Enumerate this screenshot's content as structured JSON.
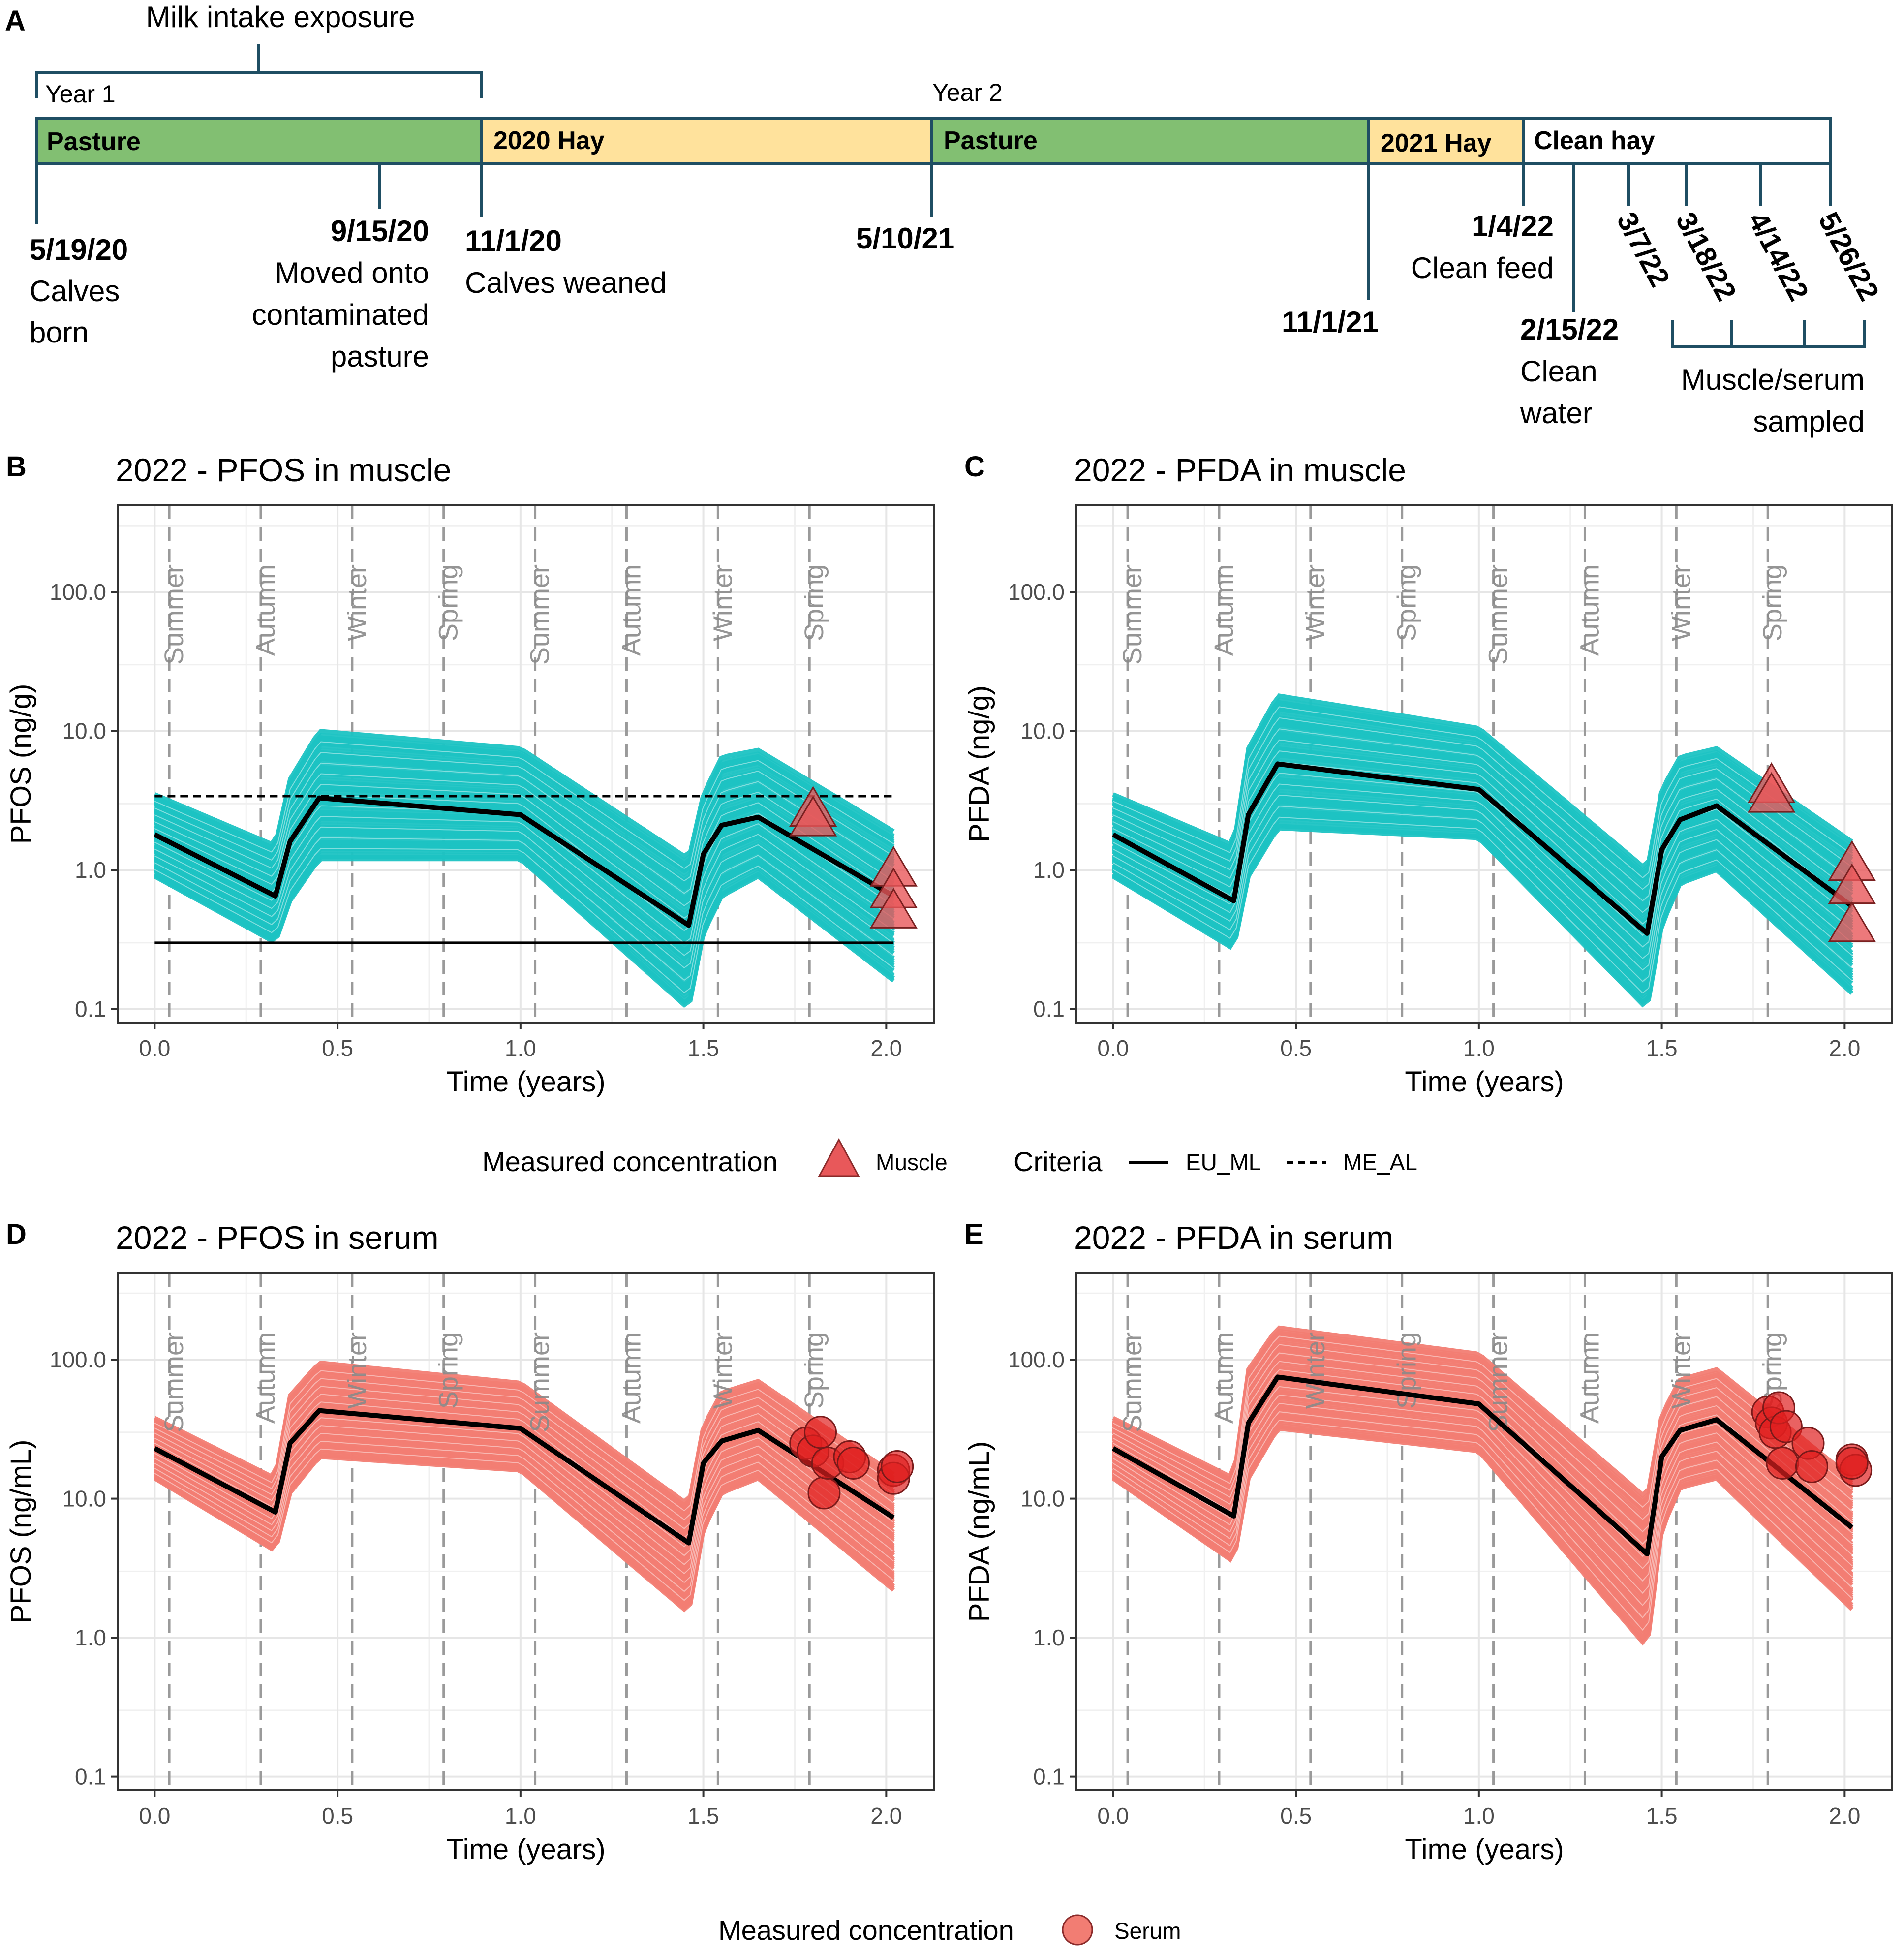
{
  "timeline": {
    "panel_letter": "A",
    "milk_label": "Milk intake exposure",
    "year1_label": "Year 1",
    "year2_label": "Year 2",
    "phases": [
      {
        "label": "Pasture",
        "color": "#82bf72"
      },
      {
        "label": "2020 Hay",
        "color": "#ffe29c"
      },
      {
        "label": "Pasture",
        "color": "#82bf72"
      },
      {
        "label": "2021 Hay",
        "color": "#ffe29c"
      },
      {
        "label": "Clean hay",
        "color": "#ffffff"
      }
    ],
    "events": [
      {
        "date": "5/19/20",
        "desc": [
          "Calves",
          "born"
        ]
      },
      {
        "date": "9/15/20",
        "desc": [
          "Moved onto",
          "contaminated",
          "pasture"
        ]
      },
      {
        "date": "11/1/20",
        "desc": [
          "Calves weaned"
        ]
      },
      {
        "date": "5/10/21",
        "desc": []
      },
      {
        "date": "11/1/21",
        "desc": []
      },
      {
        "date": "1/4/22",
        "desc": [
          "Clean feed"
        ]
      },
      {
        "date": "2/15/22",
        "desc": [
          "Clean",
          "water"
        ]
      }
    ],
    "sampling_dates": [
      "3/7/22",
      "3/18/22",
      "4/14/22",
      "5/26/22"
    ],
    "sampling_label": [
      "Muscle/serum",
      "sampled"
    ]
  },
  "legend_muscle": {
    "title": "Measured concentration",
    "item": "Muscle",
    "criteria_title": "Criteria",
    "criteria_items": [
      "EU_ML",
      "ME_AL"
    ]
  },
  "legend_serum": {
    "title": "Measured concentration",
    "item": "Serum"
  },
  "colors": {
    "teal": "#1cc3c3",
    "salmon": "#f27d73",
    "triangle": "#e8585a",
    "circle": "#e02020",
    "median": "#000000",
    "timeline_border": "#1f4e63"
  },
  "chart_data": [
    {
      "panel": "B",
      "type": "line",
      "title": "2022 - PFOS in muscle",
      "xlabel": "Time (years)",
      "ylabel": "PFOS (ng/g)",
      "xlim": [
        -0.1,
        2.13
      ],
      "ylim": [
        0.08,
        420
      ],
      "yscale": "log",
      "xticks": [
        "0.0",
        "0.5",
        "1.0",
        "1.5",
        "2.0"
      ],
      "yticks": [
        "0.1",
        "1.0",
        "10.0",
        "100.0"
      ],
      "seasons": [
        {
          "label": "Summer",
          "x": 0.04
        },
        {
          "label": "Autumn",
          "x": 0.29
        },
        {
          "label": "Winter",
          "x": 0.54
        },
        {
          "label": "Spring",
          "x": 0.79
        },
        {
          "label": "Summer",
          "x": 1.04
        },
        {
          "label": "Autumn",
          "x": 1.29
        },
        {
          "label": "Winter",
          "x": 1.54
        },
        {
          "label": "Spring",
          "x": 1.79
        }
      ],
      "band": "teal",
      "median": {
        "x": [
          0,
          0.33,
          0.37,
          0.45,
          1.0,
          1.46,
          1.5,
          1.55,
          1.65,
          2.02
        ],
        "y": [
          1.8,
          0.65,
          1.6,
          3.3,
          2.5,
          0.4,
          1.3,
          2.1,
          2.4,
          0.65
        ]
      },
      "band_lower": {
        "x": [
          0,
          0.33,
          0.37,
          0.45,
          1.0,
          1.46,
          1.5,
          1.55,
          1.65,
          2.02
        ],
        "y": [
          0.9,
          0.3,
          0.6,
          1.2,
          1.2,
          0.1,
          0.35,
          0.65,
          0.9,
          0.16
        ]
      },
      "band_upper": {
        "x": [
          0,
          0.33,
          0.37,
          0.45,
          1.0,
          1.46,
          1.5,
          1.55,
          1.65,
          2.02
        ],
        "y": [
          3.5,
          1.5,
          4.5,
          10.0,
          7.5,
          1.2,
          3.5,
          6.5,
          7.3,
          1.9
        ]
      },
      "hlines": [
        {
          "name": "EU_ML",
          "y": 0.3,
          "style": "solid"
        },
        {
          "name": "ME_AL",
          "y": 3.4,
          "style": "dashed"
        }
      ],
      "hline_x": [
        0,
        2.02
      ],
      "points": {
        "shape": "triangle",
        "name": "Muscle",
        "x": [
          1.8,
          1.8,
          2.02,
          2.02,
          2.02
        ],
        "y": [
          2.7,
          2.3,
          1.0,
          0.7,
          0.5
        ]
      }
    },
    {
      "panel": "C",
      "type": "line",
      "title": "2022 - PFDA in muscle",
      "xlabel": "Time (years)",
      "ylabel": "PFDA (ng/g)",
      "xlim": [
        -0.1,
        2.13
      ],
      "ylim": [
        0.08,
        420
      ],
      "yscale": "log",
      "xticks": [
        "0.0",
        "0.5",
        "1.0",
        "1.5",
        "2.0"
      ],
      "yticks": [
        "0.1",
        "1.0",
        "10.0",
        "100.0"
      ],
      "seasons": [
        {
          "label": "Summer",
          "x": 0.04
        },
        {
          "label": "Autumn",
          "x": 0.29
        },
        {
          "label": "Winter",
          "x": 0.54
        },
        {
          "label": "Spring",
          "x": 0.79
        },
        {
          "label": "Summer",
          "x": 1.04
        },
        {
          "label": "Autumn",
          "x": 1.29
        },
        {
          "label": "Winter",
          "x": 1.54
        },
        {
          "label": "Spring",
          "x": 1.79
        }
      ],
      "band": "teal",
      "median": {
        "x": [
          0,
          0.33,
          0.37,
          0.45,
          1.0,
          1.46,
          1.5,
          1.55,
          1.65,
          2.02
        ],
        "y": [
          1.8,
          0.6,
          2.5,
          5.8,
          3.8,
          0.35,
          1.4,
          2.3,
          2.9,
          0.55
        ]
      },
      "band_lower": {
        "x": [
          0,
          0.33,
          0.37,
          0.45,
          1.0,
          1.46,
          1.5,
          1.55,
          1.65,
          2.02
        ],
        "y": [
          0.9,
          0.27,
          0.9,
          2.0,
          1.7,
          0.1,
          0.4,
          0.8,
          1.0,
          0.13
        ]
      },
      "band_upper": {
        "x": [
          0,
          0.33,
          0.37,
          0.45,
          1.0,
          1.46,
          1.5,
          1.55,
          1.65,
          2.02
        ],
        "y": [
          3.5,
          1.5,
          7.5,
          18.0,
          10.5,
          1.0,
          3.8,
          6.5,
          7.5,
          1.6
        ]
      },
      "hlines": [],
      "hline_x": [
        0,
        2.02
      ],
      "points": {
        "shape": "triangle",
        "name": "Muscle",
        "x": [
          1.8,
          1.8,
          2.02,
          2.02,
          2.02
        ],
        "y": [
          4.0,
          3.4,
          1.1,
          0.75,
          0.4
        ]
      }
    },
    {
      "panel": "D",
      "type": "line",
      "title": "2022 - PFOS in serum",
      "xlabel": "Time (years)",
      "ylabel": "PFOS (ng/mL)",
      "xlim": [
        -0.1,
        2.13
      ],
      "ylim": [
        0.08,
        420
      ],
      "yscale": "log",
      "xticks": [
        "0.0",
        "0.5",
        "1.0",
        "1.5",
        "2.0"
      ],
      "yticks": [
        "0.1",
        "1.0",
        "10.0",
        "100.0"
      ],
      "seasons": [
        {
          "label": "Summer",
          "x": 0.04
        },
        {
          "label": "Autumn",
          "x": 0.29
        },
        {
          "label": "Winter",
          "x": 0.54
        },
        {
          "label": "Spring",
          "x": 0.79
        },
        {
          "label": "Summer",
          "x": 1.04
        },
        {
          "label": "Autumn",
          "x": 1.29
        },
        {
          "label": "Winter",
          "x": 1.54
        },
        {
          "label": "Spring",
          "x": 1.79
        }
      ],
      "band": "salmon",
      "median": {
        "x": [
          0,
          0.33,
          0.37,
          0.45,
          1.0,
          1.46,
          1.5,
          1.55,
          1.65,
          2.02
        ],
        "y": [
          23,
          8,
          25,
          43,
          32,
          4.8,
          18,
          26,
          31,
          7.3
        ]
      },
      "band_lower": {
        "x": [
          0,
          0.33,
          0.37,
          0.45,
          1.0,
          1.46,
          1.5,
          1.55,
          1.65,
          2.02
        ],
        "y": [
          14,
          4.2,
          11,
          20,
          16,
          1.5,
          6,
          11,
          14,
          2.2
        ]
      },
      "band_upper": {
        "x": [
          0,
          0.33,
          0.37,
          0.45,
          1.0,
          1.46,
          1.5,
          1.55,
          1.65,
          2.02
        ],
        "y": [
          38,
          14,
          55,
          95,
          68,
          9,
          33,
          58,
          70,
          15
        ]
      },
      "hlines": [],
      "hline_x": [
        0,
        2.02
      ],
      "points": {
        "shape": "circle",
        "name": "Serum",
        "x": [
          1.78,
          1.8,
          1.82,
          1.83,
          1.84,
          1.9,
          1.91,
          2.02,
          2.02,
          2.03
        ],
        "y": [
          25,
          22,
          30,
          11,
          18,
          20,
          18,
          16,
          14,
          17
        ]
      }
    },
    {
      "panel": "E",
      "type": "line",
      "title": "2022 - PFDA in serum",
      "xlabel": "Time (years)",
      "ylabel": "PFDA (ng/mL)",
      "xlim": [
        -0.1,
        2.13
      ],
      "ylim": [
        0.08,
        420
      ],
      "yscale": "log",
      "xticks": [
        "0.0",
        "0.5",
        "1.0",
        "1.5",
        "2.0"
      ],
      "yticks": [
        "0.1",
        "1.0",
        "10.0",
        "100.0"
      ],
      "seasons": [
        {
          "label": "Summer",
          "x": 0.04
        },
        {
          "label": "Autumn",
          "x": 0.29
        },
        {
          "label": "Winter",
          "x": 0.54
        },
        {
          "label": "Spring",
          "x": 0.79
        },
        {
          "label": "Summer",
          "x": 1.04
        },
        {
          "label": "Autumn",
          "x": 1.29
        },
        {
          "label": "Winter",
          "x": 1.54
        },
        {
          "label": "Spring",
          "x": 1.79
        }
      ],
      "band": "salmon",
      "median": {
        "x": [
          0,
          0.33,
          0.37,
          0.45,
          1.0,
          1.46,
          1.5,
          1.55,
          1.65,
          2.02
        ],
        "y": [
          23,
          7.5,
          35,
          75,
          48,
          4,
          20,
          31,
          37,
          6.2
        ]
      },
      "band_lower": {
        "x": [
          0,
          0.33,
          0.37,
          0.45,
          1.0,
          1.46,
          1.5,
          1.55,
          1.65,
          2.02
        ],
        "y": [
          14,
          3.5,
          14,
          32,
          22,
          0.85,
          6,
          12,
          14,
          1.6
        ]
      },
      "band_upper": {
        "x": [
          0,
          0.33,
          0.37,
          0.45,
          1.0,
          1.46,
          1.5,
          1.55,
          1.65,
          2.02
        ],
        "y": [
          38,
          14,
          85,
          170,
          110,
          10,
          40,
          72,
          85,
          14
        ]
      },
      "hlines": [],
      "hline_x": [
        0,
        2.02
      ],
      "points": {
        "shape": "circle",
        "name": "Serum",
        "x": [
          1.79,
          1.8,
          1.81,
          1.82,
          1.83,
          1.84,
          1.9,
          1.91,
          2.02,
          2.03,
          2.02
        ],
        "y": [
          42,
          35,
          30,
          45,
          18,
          33,
          25,
          17,
          19,
          16,
          18
        ]
      }
    }
  ]
}
